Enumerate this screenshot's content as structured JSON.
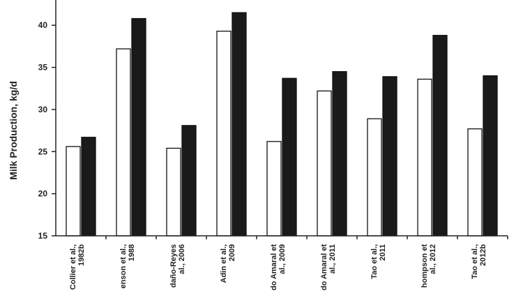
{
  "chart_data": {
    "type": "bar",
    "y_label": "Milk Production, kg/d",
    "categories": [
      "Collier et al.,\n1982b",
      "enson et al.,\n1988",
      "daño-Reyes\nal., 2006",
      "Adin et al.,\n2009",
      "do Amaral et\nal., 2009",
      "do Amaral et\nal., 2011",
      "Tao et al.,\n2011",
      "hompson et\nal., 2012",
      "Tao et al.,\n2012b"
    ],
    "series": [
      {
        "color": "#ffffff",
        "values": [
          25.6,
          37.2,
          25.4,
          39.3,
          26.2,
          32.2,
          28.9,
          33.6,
          27.7
        ]
      },
      {
        "color": "#1a1a1a",
        "values": [
          26.7,
          40.8,
          28.1,
          41.5,
          33.7,
          34.5,
          33.9,
          38.8,
          34.0
        ]
      }
    ],
    "ylim": [
      15,
      43
    ],
    "yticks": [
      15,
      20,
      25,
      30,
      35,
      40
    ],
    "grid": false
  }
}
